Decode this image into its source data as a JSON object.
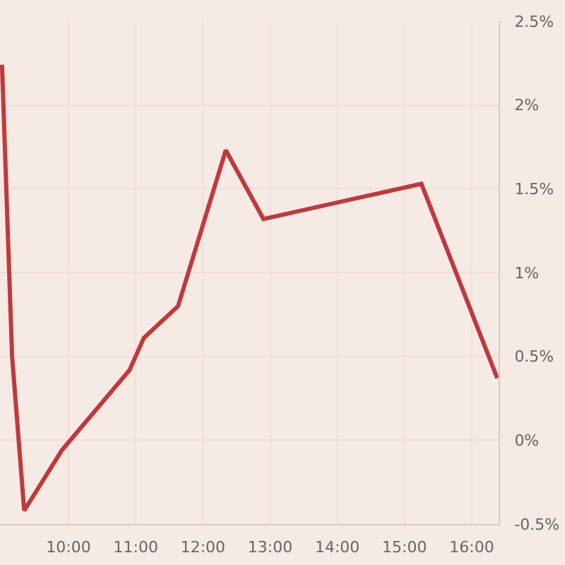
{
  "chart_data": {
    "type": "line",
    "x": [
      9.01,
      9.16,
      9.34,
      9.9,
      10.91,
      11.12,
      11.63,
      12.34,
      12.9,
      15.25,
      16.38
    ],
    "series": [
      {
        "color": "#c0393b",
        "values": [
          2.24,
          0.5,
          -0.42,
          -0.06,
          0.42,
          0.61,
          0.8,
          1.73,
          1.32,
          1.53,
          0.37
        ]
      }
    ],
    "xlim": [
      8.98,
      16.4
    ],
    "xticks": [
      {
        "value": 10,
        "label": "10:00"
      },
      {
        "value": 11,
        "label": "11:00"
      },
      {
        "value": 12,
        "label": "12:00"
      },
      {
        "value": 13,
        "label": "13:00"
      },
      {
        "value": 14,
        "label": "14:00"
      },
      {
        "value": 15,
        "label": "15:00"
      },
      {
        "value": 16,
        "label": "16:00"
      }
    ],
    "ylim": [
      -0.5,
      2.5
    ],
    "yticks": [
      {
        "value": -0.5,
        "label": "-0.5%"
      },
      {
        "value": 0,
        "label": "0%"
      },
      {
        "value": 0.5,
        "label": "0.5%"
      },
      {
        "value": 1,
        "label": "1%"
      },
      {
        "value": 1.5,
        "label": "1.5%"
      },
      {
        "value": 2,
        "label": "2%"
      },
      {
        "value": 2.5,
        "label": "2.5%"
      }
    ],
    "grid": true,
    "marker": "none",
    "line_style": "solid"
  }
}
